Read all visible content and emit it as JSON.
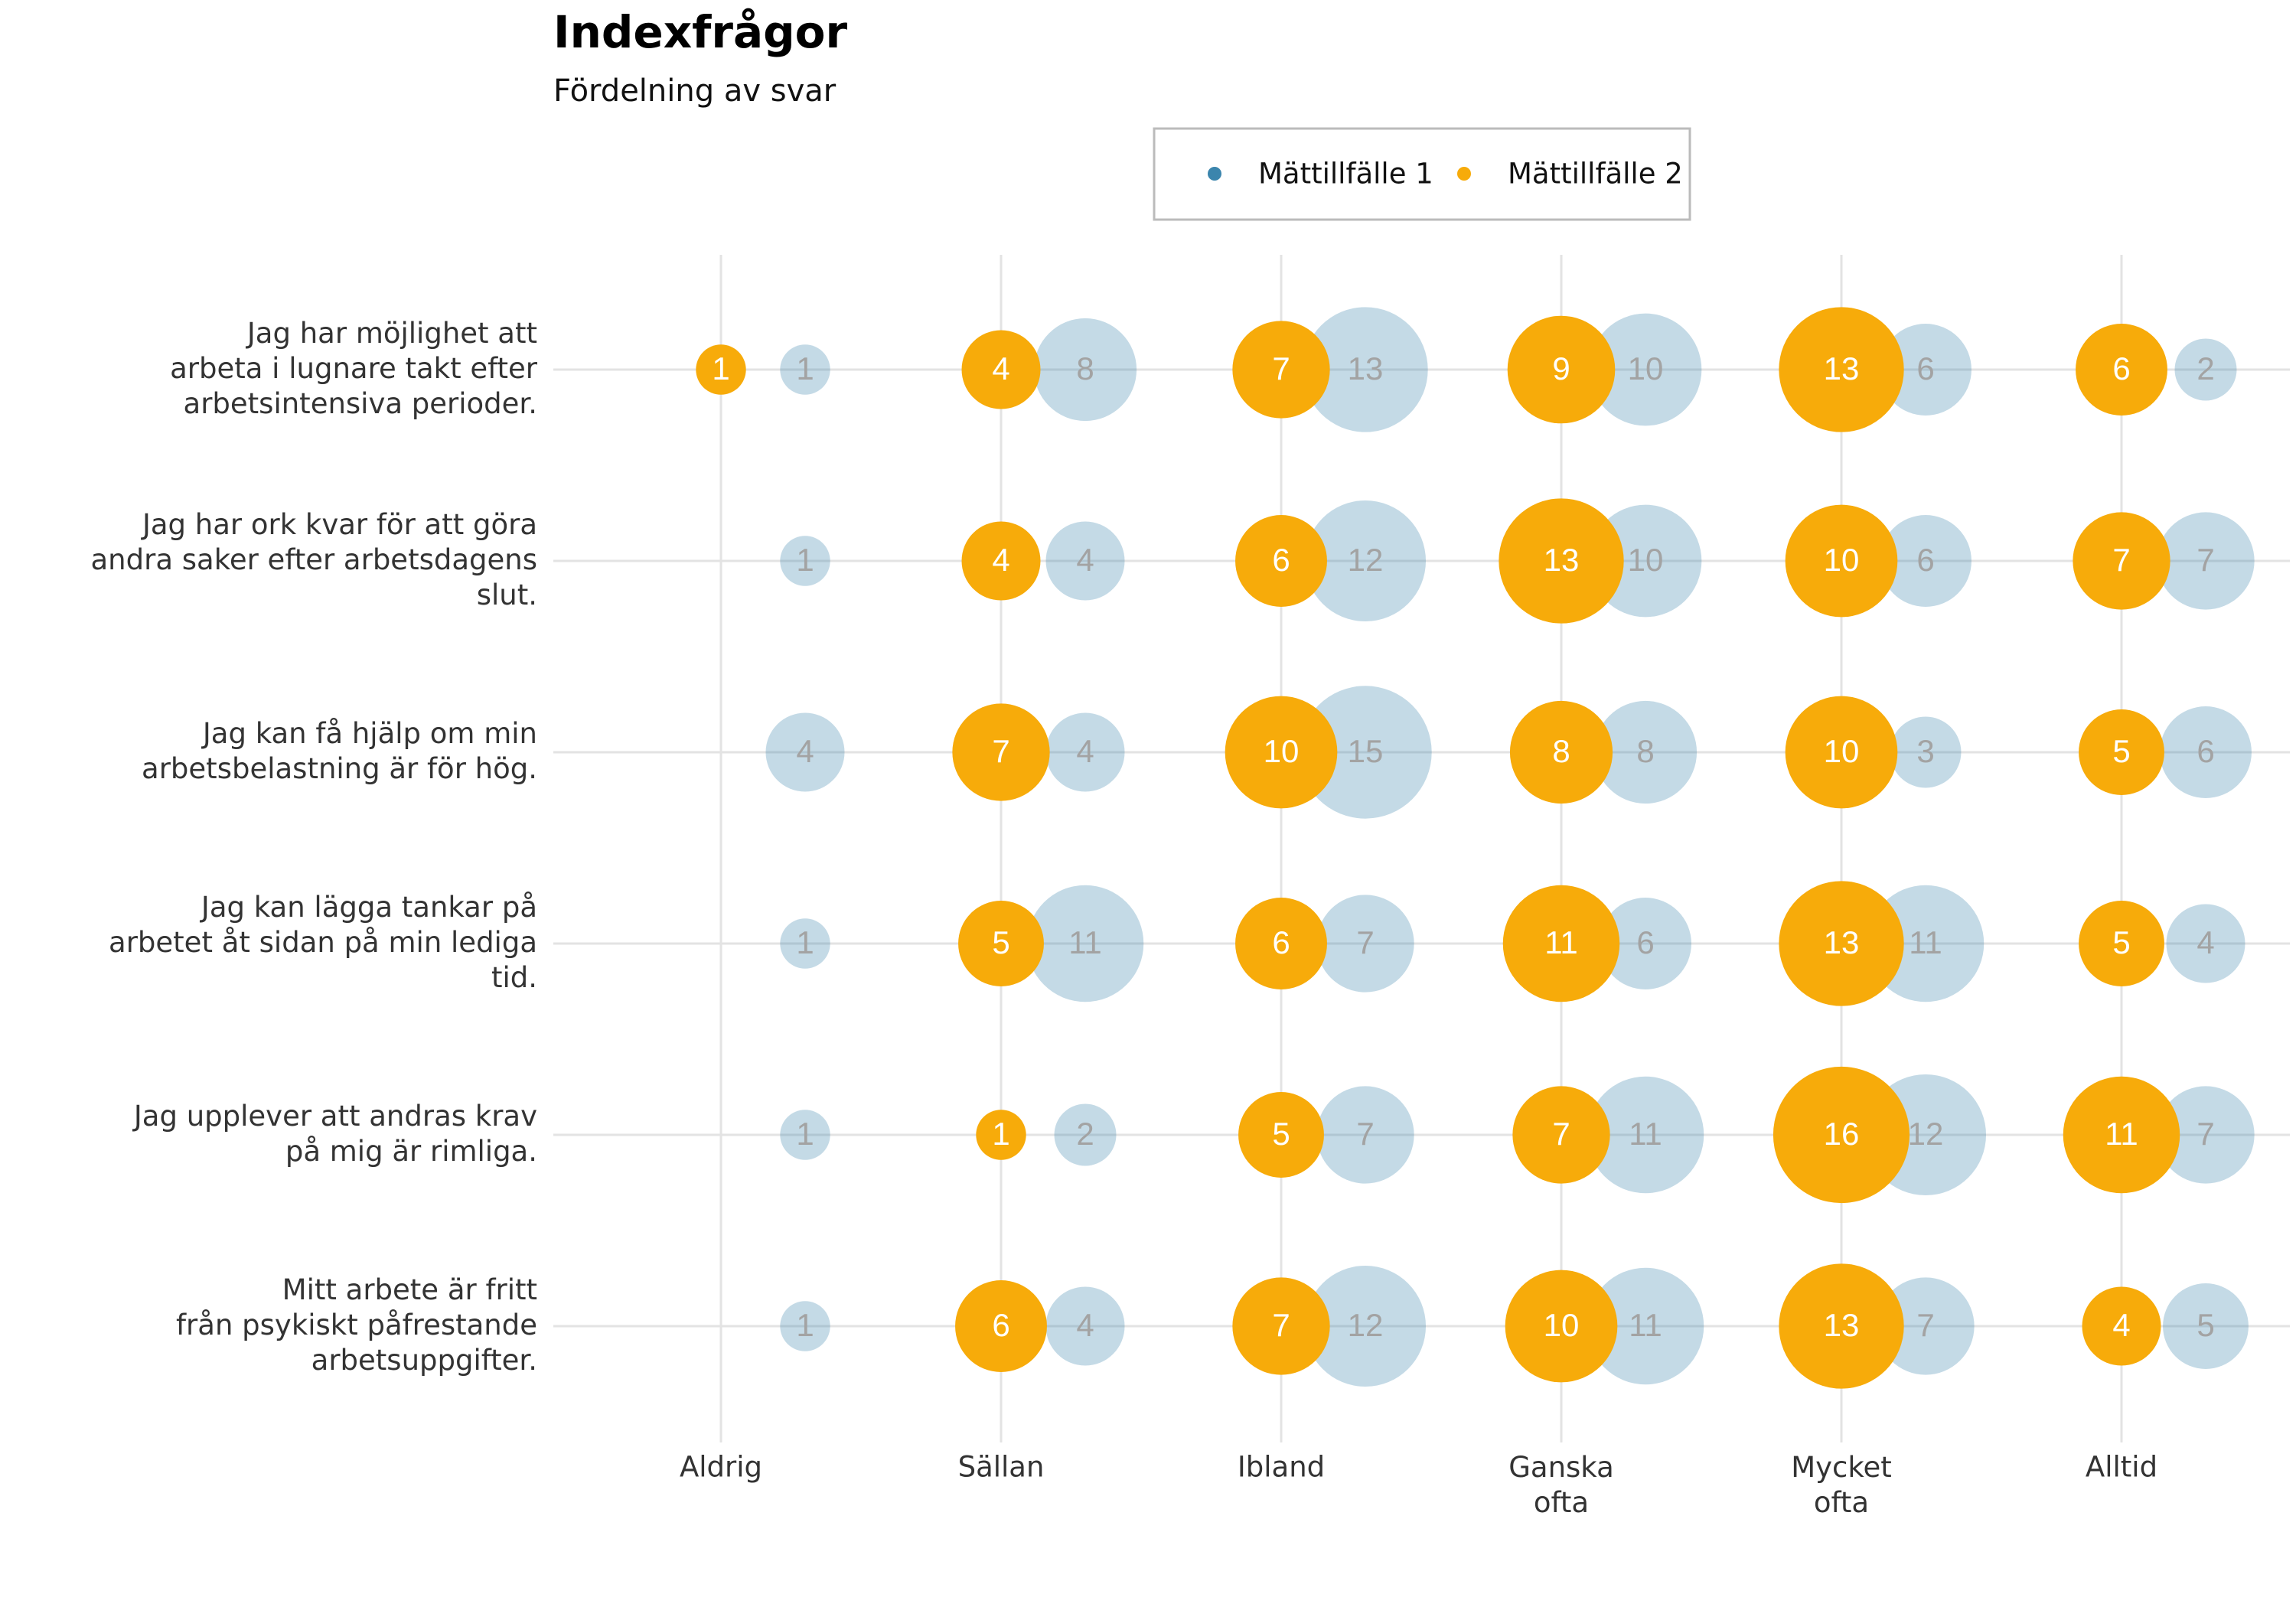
{
  "chart_data": {
    "type": "bubble",
    "title": "Indexfrågor",
    "subtitle": "Fördelning av svar",
    "categories": [
      "Aldrig",
      "Sällan",
      "Ibland",
      "Ganska\nofta",
      "Mycket\nofta",
      "Alltid"
    ],
    "rows": [
      "Jag har möjlighet att\narbeta i lugnare takt efter\narbetsintensiva perioder.",
      "Jag har ork kvar för att göra\nandra saker efter arbetsdagens\nslut.",
      "Jag kan få hjälp om min\narbetsbelastning är för hög.",
      "Jag kan lägga tankar på\narbetet åt sidan på min lediga\ntid.",
      "Jag upplever att andras krav\npå mig är rimliga.",
      "Mitt arbete är fritt\nfrån psykiskt påfrestande\narbetsuppgifter."
    ],
    "series": [
      {
        "name": "Mättillfälle 1",
        "color": "#3b85ad",
        "values": [
          [
            1,
            8,
            13,
            10,
            6,
            2
          ],
          [
            1,
            4,
            12,
            10,
            6,
            7
          ],
          [
            4,
            4,
            15,
            8,
            3,
            6
          ],
          [
            1,
            11,
            7,
            6,
            11,
            4
          ],
          [
            1,
            2,
            7,
            11,
            12,
            7
          ],
          [
            1,
            4,
            12,
            11,
            7,
            5
          ]
        ]
      },
      {
        "name": "Mättillfälle 2",
        "color": "#f7ab0a",
        "values": [
          [
            1,
            4,
            7,
            9,
            13,
            6
          ],
          [
            null,
            4,
            6,
            13,
            10,
            7
          ],
          [
            null,
            7,
            10,
            8,
            10,
            5
          ],
          [
            null,
            5,
            6,
            11,
            13,
            5
          ],
          [
            null,
            1,
            5,
            7,
            16,
            11
          ],
          [
            null,
            6,
            7,
            10,
            13,
            4
          ]
        ]
      }
    ],
    "grid": true
  }
}
